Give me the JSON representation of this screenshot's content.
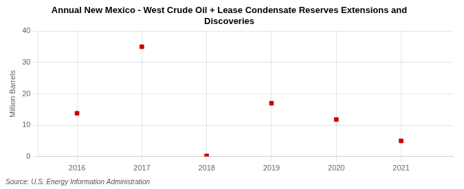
{
  "chart_data": {
    "type": "scatter",
    "title": "Annual New Mexico - West Crude Oil + Lease Condensate Reserves Extensions and\nDiscoveries",
    "ylabel": "Million Barrels",
    "annotation": "Source: U.S. Energy Information Administration",
    "x": [
      2016,
      2017,
      2018,
      2019,
      2020,
      2021
    ],
    "values": [
      13.8,
      35.0,
      0.2,
      17.0,
      11.8,
      5.0
    ],
    "color": "#cc0000",
    "marker": "square",
    "xlim": [
      2015.4,
      2021.8
    ],
    "xticks": [
      2016,
      2017,
      2018,
      2019,
      2020,
      2021
    ],
    "ylim": [
      0,
      40
    ],
    "yticks": [
      0,
      10,
      20,
      30,
      40
    ],
    "grid": true
  }
}
